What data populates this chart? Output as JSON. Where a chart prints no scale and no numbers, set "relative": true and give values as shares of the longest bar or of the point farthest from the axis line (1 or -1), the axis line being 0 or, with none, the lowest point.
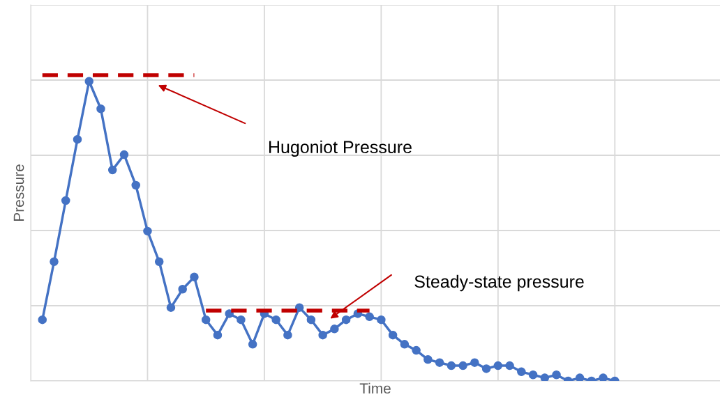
{
  "chart_data": {
    "type": "line",
    "relative": true,
    "xlabel": "Time",
    "ylabel": "Pressure",
    "grid": true,
    "tick_labels": false,
    "legend": false,
    "categories": [
      null,
      null,
      null,
      null,
      null,
      null,
      null,
      null,
      null,
      null,
      null,
      null,
      null,
      null,
      null,
      null,
      null,
      null,
      null,
      null,
      null,
      null,
      null,
      null,
      null,
      null,
      null,
      null,
      null,
      null,
      null,
      null,
      null,
      null,
      null,
      null,
      null,
      null,
      null,
      null,
      null,
      null,
      null,
      null,
      null,
      null,
      null,
      null,
      null,
      null
    ],
    "series": [
      {
        "color": "#4472c4",
        "marker": "circle",
        "line_style": "solid",
        "values": [
          0.2,
          0.39,
          0.59,
          0.79,
          0.98,
          0.89,
          0.69,
          0.74,
          0.64,
          0.49,
          0.39,
          0.24,
          0.3,
          0.34,
          0.2,
          0.15,
          0.22,
          0.2,
          0.12,
          0.22,
          0.2,
          0.15,
          0.24,
          0.2,
          0.15,
          0.17,
          0.2,
          0.22,
          0.21,
          0.2,
          0.15,
          0.12,
          0.1,
          0.07,
          0.06,
          0.05,
          0.05,
          0.06,
          0.04,
          0.05,
          0.05,
          0.03,
          0.02,
          0.01,
          0.02,
          0,
          0.01,
          0,
          0.01,
          0
        ]
      },
      {
        "type": "line",
        "color": "#c00000",
        "marker": "none",
        "line_style": "dashed",
        "values": [
          1,
          1,
          1,
          1,
          1,
          1,
          1,
          1,
          1,
          1,
          1,
          1,
          1,
          1,
          null,
          null,
          null,
          null,
          null,
          null,
          null,
          null,
          null,
          null,
          null,
          null,
          null,
          null,
          null,
          null,
          null,
          null,
          null,
          null,
          null,
          null,
          null,
          null,
          null,
          null,
          null,
          null,
          null,
          null,
          null,
          null,
          null,
          null,
          null,
          null
        ]
      },
      {
        "type": "line",
        "color": "#c00000",
        "marker": "none",
        "line_style": "dashed",
        "values": [
          null,
          null,
          null,
          null,
          null,
          null,
          null,
          null,
          null,
          null,
          null,
          null,
          null,
          null,
          0.23,
          0.23,
          0.23,
          0.23,
          0.23,
          0.23,
          0.23,
          0.23,
          0.23,
          0.23,
          0.23,
          0.23,
          0.23,
          0.23,
          0.23,
          null,
          null,
          null,
          null,
          null,
          null,
          null,
          null,
          null,
          null,
          null,
          null,
          null,
          null,
          null,
          null,
          null,
          null,
          null,
          null,
          null
        ]
      }
    ],
    "annotations": [
      "Hugoniot Pressure",
      "Steady-state pressure"
    ]
  }
}
